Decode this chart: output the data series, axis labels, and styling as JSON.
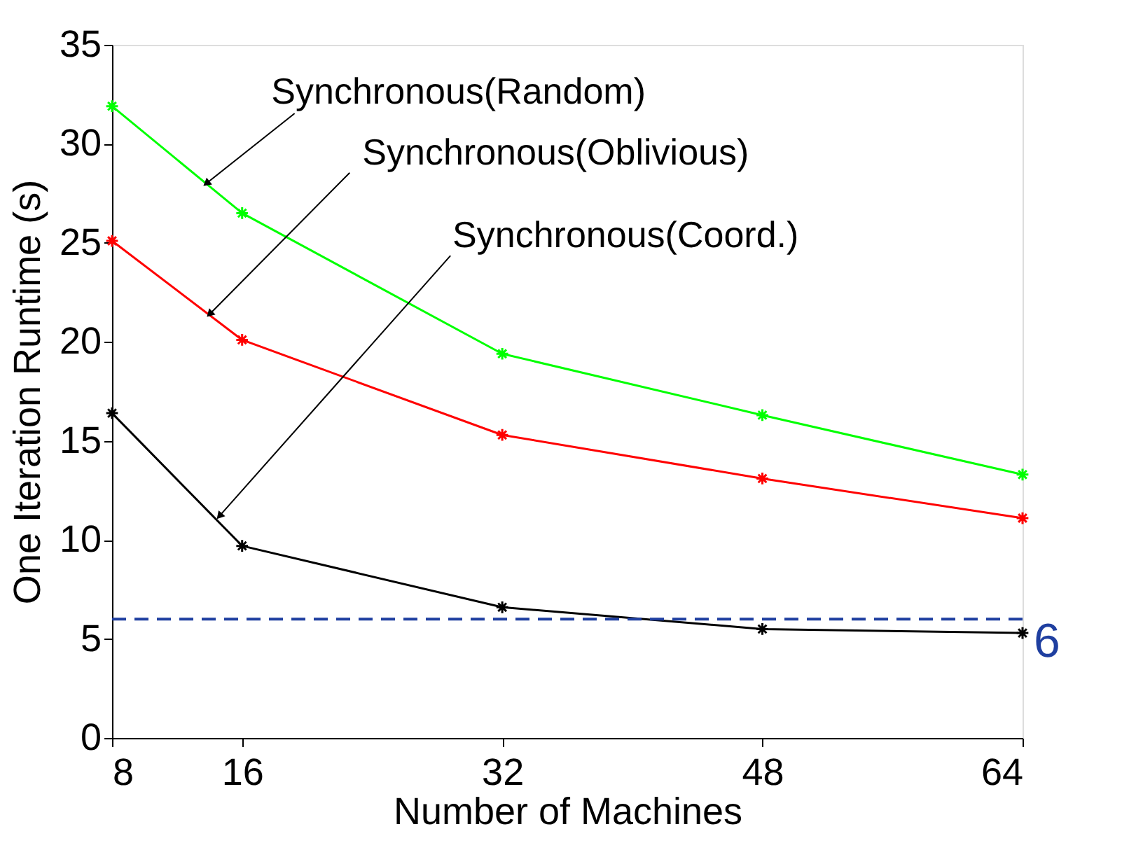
{
  "chart_data": {
    "type": "line",
    "xlabel": "Number of Machines",
    "ylabel": "One Iteration Runtime (s)",
    "x": [
      8,
      16,
      32,
      48,
      64
    ],
    "series": [
      {
        "color": "#00ff00",
        "values": [
          31.9,
          26.5,
          19.4,
          16.3,
          13.3
        ]
      },
      {
        "color": "#ff0000",
        "values": [
          25.1,
          20.1,
          15.3,
          13.1,
          11.1
        ]
      },
      {
        "color": "#000000",
        "values": [
          16.4,
          9.7,
          6.6,
          5.5,
          5.3
        ]
      }
    ],
    "annotations": [
      {
        "text": "Synchronous(Random)",
        "x": 13.8,
        "y": 28.0
      },
      {
        "text": "Synchronous(Oblivious)",
        "x": 14.0,
        "y": 21.4
      },
      {
        "text": "Synchronous(Coord.)",
        "x": 14.6,
        "y": 11.2
      }
    ],
    "ref_lines": [
      {
        "axis": "y",
        "value": 6,
        "label": "6",
        "color": "#1f3fa0",
        "line_style": "dashed"
      }
    ],
    "xlim": [
      8,
      64
    ],
    "xticks": [
      8,
      16,
      32,
      48,
      64
    ],
    "ylim": [
      0,
      35
    ],
    "yticks": [
      0,
      5,
      10,
      15,
      20,
      25,
      30,
      35
    ],
    "marker": "cross",
    "line_style": "solid",
    "grid": false,
    "legend": false
  }
}
